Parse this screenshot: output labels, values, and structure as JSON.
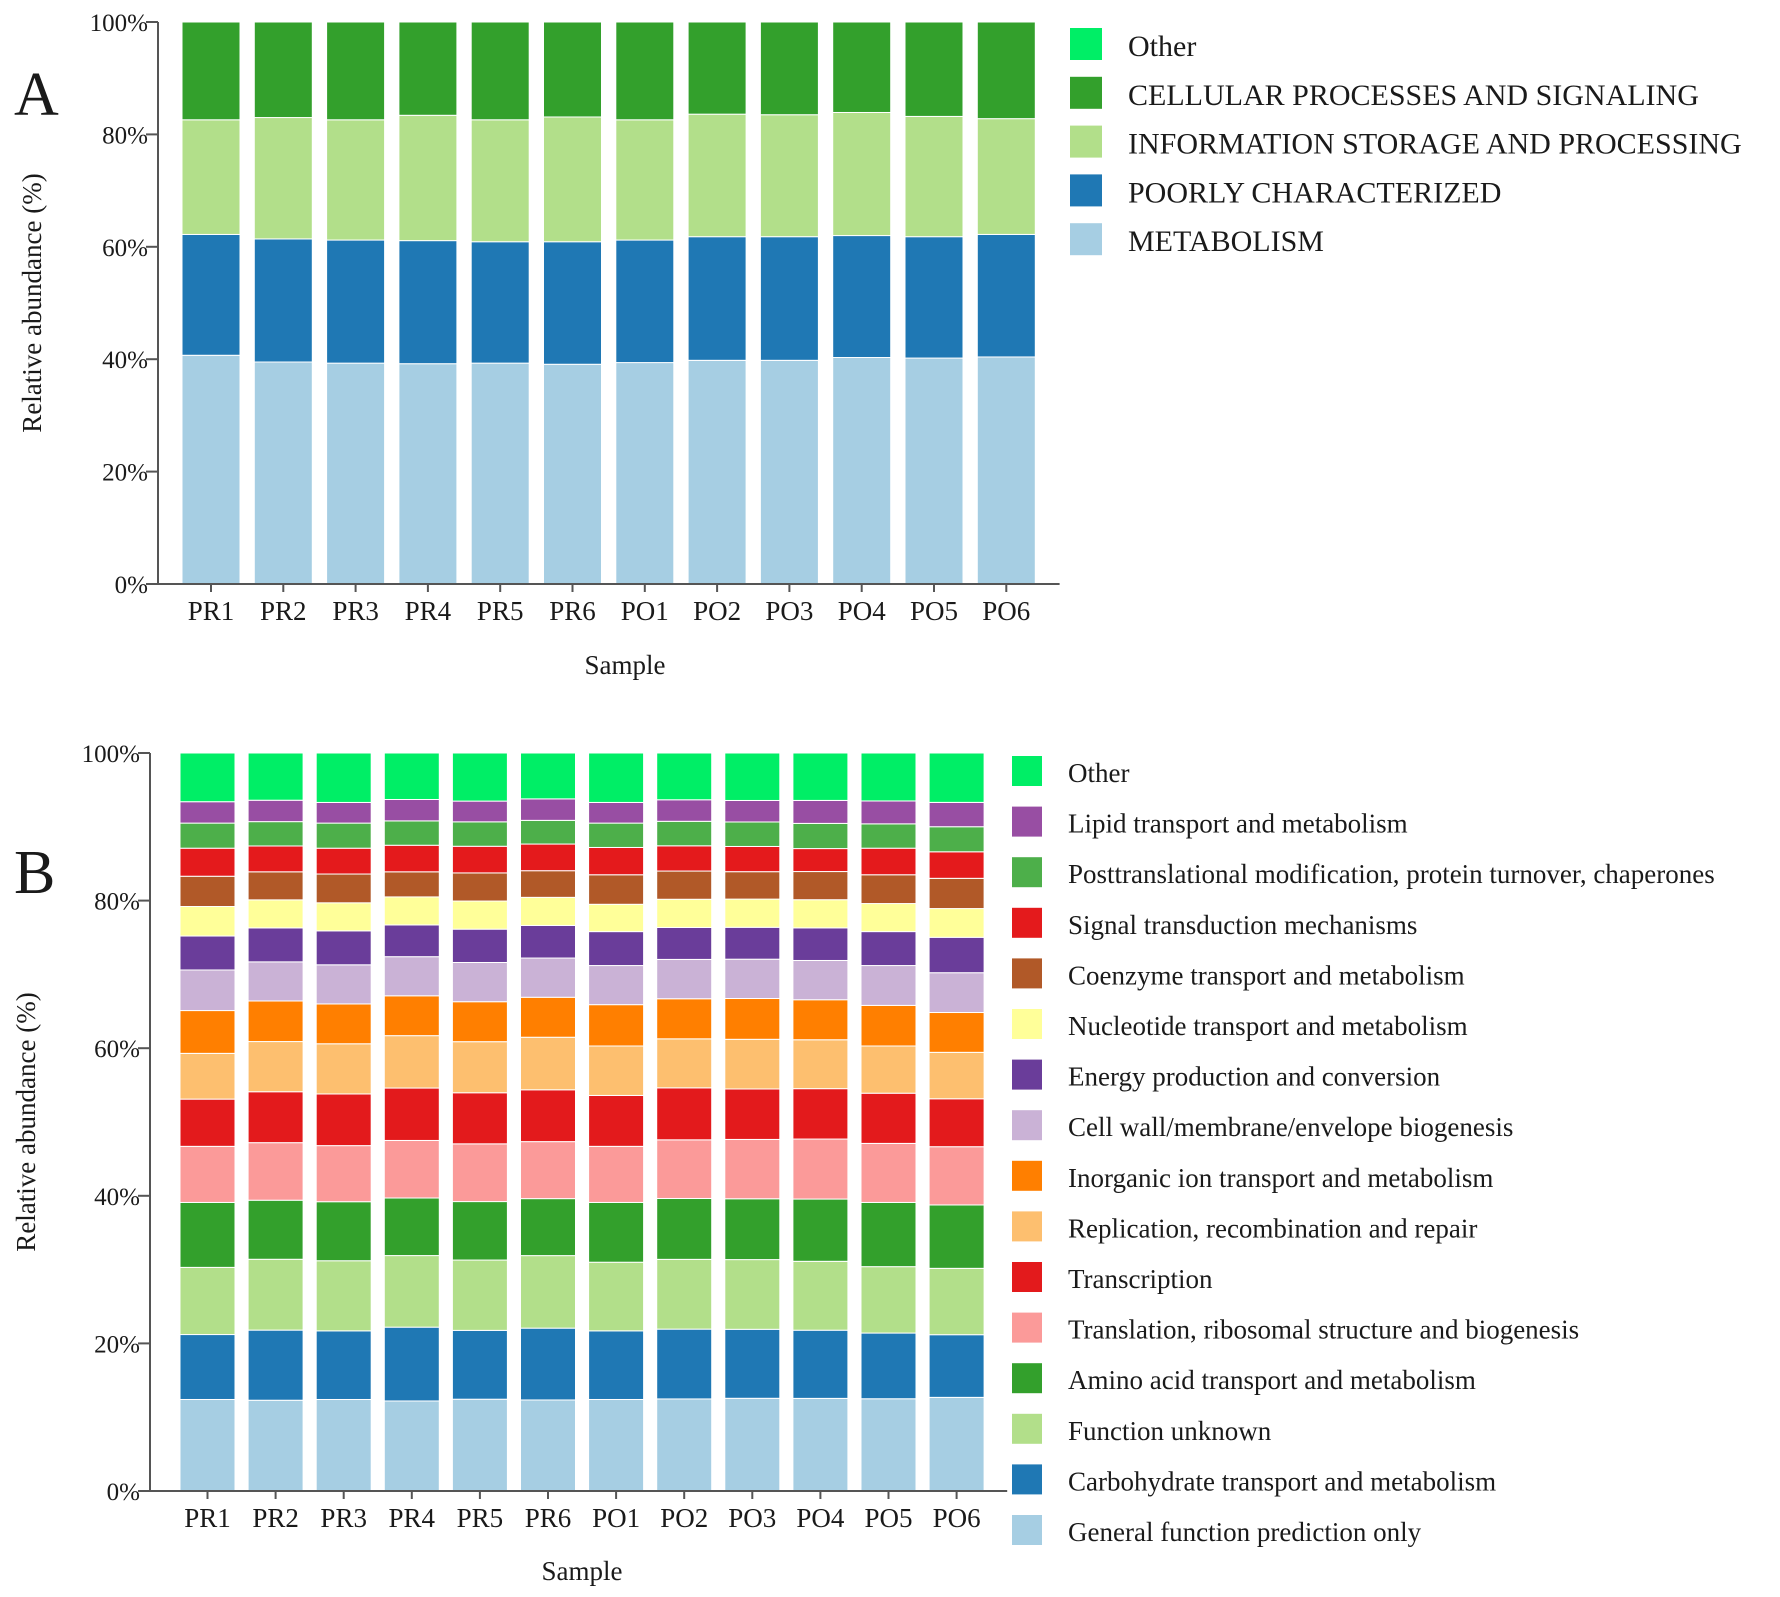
{
  "colors": {
    "Other": "#00ee66",
    "Other_b": "#00ee66",
    "CELLULAR PROCESSES AND SIGNALING": "#33a02c",
    "INFORMATION STORAGE AND PROCESSING": "#b2df8a",
    "POORLY CHARACTERIZED": "#1f78b4",
    "METABOLISM": "#a6cee3",
    "Lipid transport and metabolism": "#984ea3",
    "Posttranslational modification, protein turnover, chaperones": "#4daf4a",
    "Signal transduction mechanisms": "#e41a1c",
    "Coenzyme transport and metabolism": "#b15928",
    "Nucleotide transport and metabolism": "#ffff99",
    "Energy production and conversion": "#6a3d9a",
    "Cell wall/membrane/envelope biogenesis": "#cab2d6",
    "Inorganic ion transport and metabolism": "#ff7f00",
    "Replication, recombination and repair": "#fdbf6f",
    "Transcription": "#e31a1c",
    "Translation, ribosomal structure and biogenesis": "#fb9a99",
    "Amino acid transport and metabolism": "#33a02c",
    "Function unknown": "#b2df8a",
    "Carbohydrate transport and metabolism": "#1f78b4",
    "General function prediction only": "#a6cee3"
  },
  "chart_data": [
    {
      "panel": "A",
      "type": "bar",
      "stacked": true,
      "title": "",
      "xlabel": "Sample",
      "ylabel": "Relative abundance (%)",
      "ylim": [
        0,
        100
      ],
      "yticks": [
        "0%",
        "20%",
        "40%",
        "60%",
        "80%",
        "100%"
      ],
      "categories": [
        "PR1",
        "PR2",
        "PR3",
        "PR4",
        "PR5",
        "PR6",
        "PO1",
        "PO2",
        "PO3",
        "PO4",
        "PO5",
        "PO6"
      ],
      "legend": [
        "Other",
        "CELLULAR PROCESSES AND SIGNALING",
        "INFORMATION STORAGE AND PROCESSING",
        "POORLY CHARACTERIZED",
        "METABOLISM"
      ],
      "series": [
        {
          "name": "METABOLISM",
          "values": [
            40.7,
            39.5,
            39.3,
            39.2,
            39.3,
            39.1,
            39.4,
            39.8,
            39.8,
            40.3,
            40.2,
            40.4
          ]
        },
        {
          "name": "POORLY CHARACTERIZED",
          "values": [
            21.5,
            21.9,
            21.9,
            21.9,
            21.6,
            21.8,
            21.8,
            22.0,
            22.0,
            21.7,
            21.6,
            21.8
          ]
        },
        {
          "name": "INFORMATION STORAGE AND PROCESSING",
          "values": [
            20.4,
            21.6,
            21.4,
            22.3,
            21.7,
            22.2,
            21.4,
            21.8,
            21.7,
            21.9,
            21.4,
            20.6
          ]
        },
        {
          "name": "CELLULAR PROCESSES AND SIGNALING",
          "values": [
            17.4,
            17.0,
            17.4,
            16.6,
            17.4,
            16.9,
            17.4,
            16.4,
            16.5,
            16.1,
            16.8,
            17.2
          ]
        },
        {
          "name": "Other",
          "values": [
            0,
            0,
            0,
            0,
            0,
            0,
            0,
            0,
            0,
            0,
            0,
            0
          ]
        }
      ]
    },
    {
      "panel": "B",
      "type": "bar",
      "stacked": true,
      "title": "",
      "xlabel": "Sample",
      "ylabel": "Relative abundance (%)",
      "ylim": [
        0,
        100
      ],
      "yticks": [
        "0%",
        "20%",
        "40%",
        "60%",
        "80%",
        "100%"
      ],
      "categories": [
        "PR1",
        "PR2",
        "PR3",
        "PR4",
        "PR5",
        "PR6",
        "PO1",
        "PO2",
        "PO3",
        "PO4",
        "PO5",
        "PO6"
      ],
      "legend": [
        "Other",
        "Lipid transport and metabolism",
        "Posttranslational modification, protein turnover, chaperones",
        "Signal transduction mechanisms",
        "Coenzyme transport and metabolism",
        "Nucleotide transport and metabolism",
        "Energy production and conversion",
        "Cell wall/membrane/envelope biogenesis",
        "Inorganic ion transport and metabolism",
        "Replication, recombination and repair",
        "Transcription",
        "Translation, ribosomal structure and biogenesis",
        "Amino acid transport and metabolism",
        "Function unknown",
        "Carbohydrate transport and metabolism",
        "General function prediction only"
      ],
      "series": [
        {
          "name": "General function prediction only",
          "values": [
            12.4,
            12.3,
            12.4,
            12.2,
            12.4,
            12.3,
            12.4,
            12.4,
            12.5,
            12.5,
            12.5,
            12.7
          ]
        },
        {
          "name": "Carbohydrate transport and metabolism",
          "values": [
            8.8,
            9.5,
            9.3,
            10.0,
            9.3,
            9.7,
            9.3,
            9.4,
            9.3,
            9.2,
            8.9,
            8.5
          ]
        },
        {
          "name": "Function unknown",
          "values": [
            9.1,
            9.6,
            9.5,
            9.7,
            9.5,
            9.8,
            9.3,
            9.4,
            9.4,
            9.3,
            9.0,
            9.0
          ]
        },
        {
          "name": "Amino acid transport and metabolism",
          "values": [
            8.8,
            8.0,
            8.0,
            7.8,
            7.9,
            7.7,
            8.1,
            8.2,
            8.2,
            8.4,
            8.7,
            8.6
          ]
        },
        {
          "name": "Translation, ribosomal structure and biogenesis",
          "values": [
            7.6,
            7.8,
            7.6,
            7.8,
            7.8,
            7.7,
            7.6,
            7.9,
            8.0,
            8.1,
            8.0,
            7.9
          ]
        },
        {
          "name": "Transcription",
          "values": [
            6.4,
            6.9,
            7.0,
            7.1,
            6.9,
            7.0,
            6.9,
            7.0,
            6.8,
            6.8,
            6.8,
            6.5
          ]
        },
        {
          "name": "Replication, recombination and repair",
          "values": [
            6.2,
            6.8,
            6.8,
            7.1,
            6.9,
            7.1,
            6.7,
            6.6,
            6.7,
            6.6,
            6.4,
            6.3
          ]
        },
        {
          "name": "Inorganic ion transport and metabolism",
          "values": [
            5.8,
            5.5,
            5.4,
            5.4,
            5.4,
            5.4,
            5.6,
            5.4,
            5.5,
            5.4,
            5.5,
            5.4
          ]
        },
        {
          "name": "Cell wall/membrane/envelope biogenesis",
          "values": [
            5.5,
            5.3,
            5.3,
            5.3,
            5.3,
            5.3,
            5.3,
            5.3,
            5.3,
            5.3,
            5.4,
            5.4
          ]
        },
        {
          "name": "Energy production and conversion",
          "values": [
            4.6,
            4.6,
            4.6,
            4.3,
            4.5,
            4.4,
            4.6,
            4.3,
            4.3,
            4.4,
            4.6,
            4.8
          ]
        },
        {
          "name": "Nucleotide transport and metabolism",
          "values": [
            4.0,
            3.8,
            3.8,
            3.8,
            3.8,
            3.8,
            3.7,
            3.8,
            3.8,
            3.8,
            3.8,
            3.9
          ]
        },
        {
          "name": "Coenzyme transport and metabolism",
          "values": [
            4.1,
            3.8,
            3.9,
            3.4,
            3.8,
            3.6,
            4.0,
            3.8,
            3.7,
            3.8,
            3.9,
            4.1
          ]
        },
        {
          "name": "Signal transduction mechanisms",
          "values": [
            3.8,
            3.5,
            3.5,
            3.6,
            3.6,
            3.6,
            3.7,
            3.4,
            3.4,
            3.1,
            3.6,
            3.6
          ]
        },
        {
          "name": "Posttranslational modification, protein turnover, chaperones",
          "values": [
            3.4,
            3.3,
            3.4,
            3.3,
            3.3,
            3.2,
            3.3,
            3.3,
            3.3,
            3.4,
            3.3,
            3.4
          ]
        },
        {
          "name": "Lipid transport and metabolism",
          "values": [
            2.9,
            2.9,
            2.8,
            2.9,
            2.8,
            2.9,
            2.8,
            2.9,
            2.9,
            3.1,
            3.1,
            3.3
          ]
        },
        {
          "name": "Other",
          "values": [
            6.6,
            6.4,
            6.7,
            6.3,
            6.5,
            6.2,
            6.7,
            6.3,
            6.4,
            6.4,
            6.5,
            6.7
          ]
        }
      ]
    }
  ]
}
